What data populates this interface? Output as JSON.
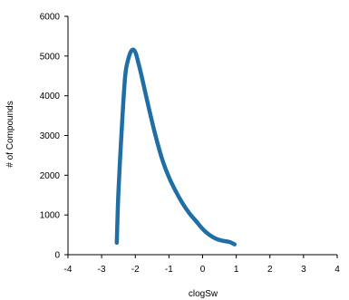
{
  "chart_data": {
    "type": "line",
    "title": "",
    "xlabel": "clogSw",
    "ylabel": "# of Compounds",
    "xlim": [
      -4,
      4
    ],
    "ylim": [
      0,
      6000
    ],
    "xticks": [
      -4,
      -3,
      -2,
      -1,
      0,
      1,
      2,
      3,
      4
    ],
    "yticks": [
      0,
      1000,
      2000,
      3000,
      4000,
      5000,
      6000
    ],
    "xtick_labels": [
      "-4",
      "-3",
      "-2",
      "-1",
      "0",
      "1",
      "2",
      "3",
      "4"
    ],
    "ytick_labels": [
      "0",
      "1000",
      "2000",
      "3000",
      "4000",
      "5000",
      "6000"
    ],
    "grid": false,
    "legend": "none",
    "series": [
      {
        "color": "#1f6fa6",
        "x": [
          -2.55,
          -2.5,
          -2.4,
          -2.3,
          -2.2,
          -2.1,
          -2.0,
          -1.9,
          -1.8,
          -1.6,
          -1.4,
          -1.2,
          -1.0,
          -0.8,
          -0.6,
          -0.4,
          -0.2,
          0.0,
          0.2,
          0.4,
          0.6,
          0.8,
          0.95
        ],
        "y": [
          300,
          1600,
          3200,
          4500,
          4950,
          5150,
          5100,
          4800,
          4450,
          3700,
          3000,
          2400,
          1950,
          1600,
          1300,
          1050,
          850,
          650,
          500,
          400,
          350,
          320,
          260
        ]
      }
    ]
  }
}
